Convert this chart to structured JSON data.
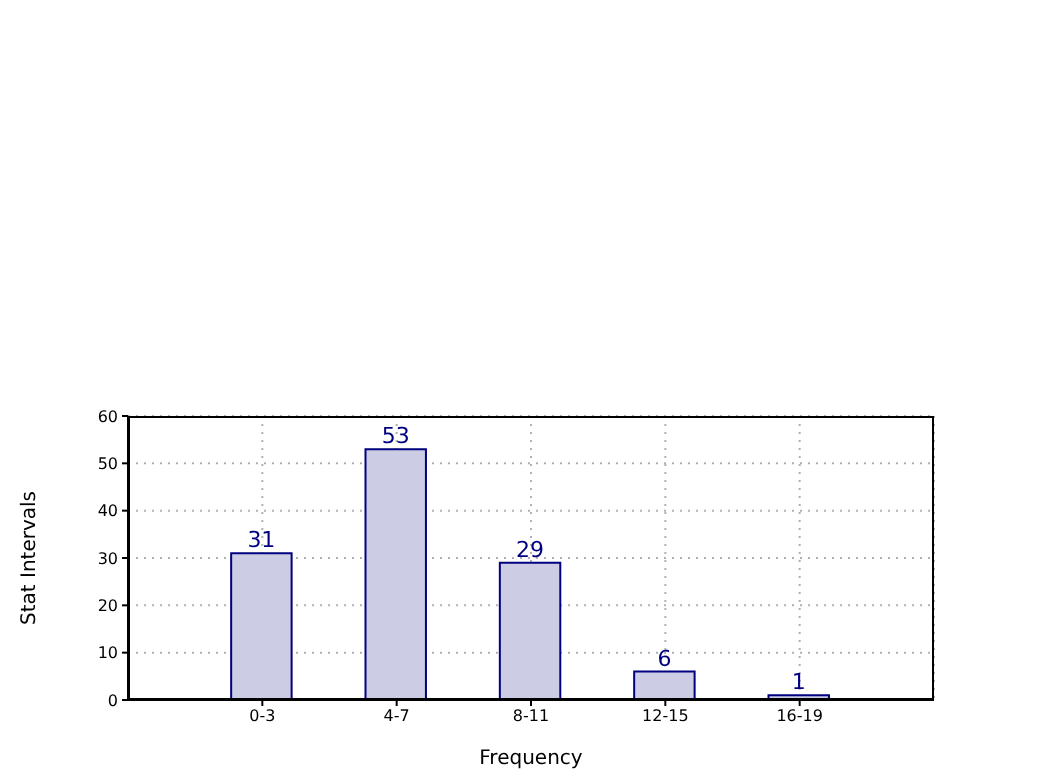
{
  "chart_data": {
    "type": "bar",
    "xlabel": "Frequency",
    "ylabel": "Stat Intervals",
    "categories": [
      "0-3",
      "4-7",
      "8-11",
      "12-15",
      "16-19"
    ],
    "values": [
      31,
      53,
      29,
      6,
      1
    ],
    "color": "#cccce4",
    "ylim": [
      0,
      60
    ],
    "yticks": [
      0,
      10,
      20,
      30,
      40,
      50,
      60
    ],
    "grid": true,
    "data_labels": true
  }
}
